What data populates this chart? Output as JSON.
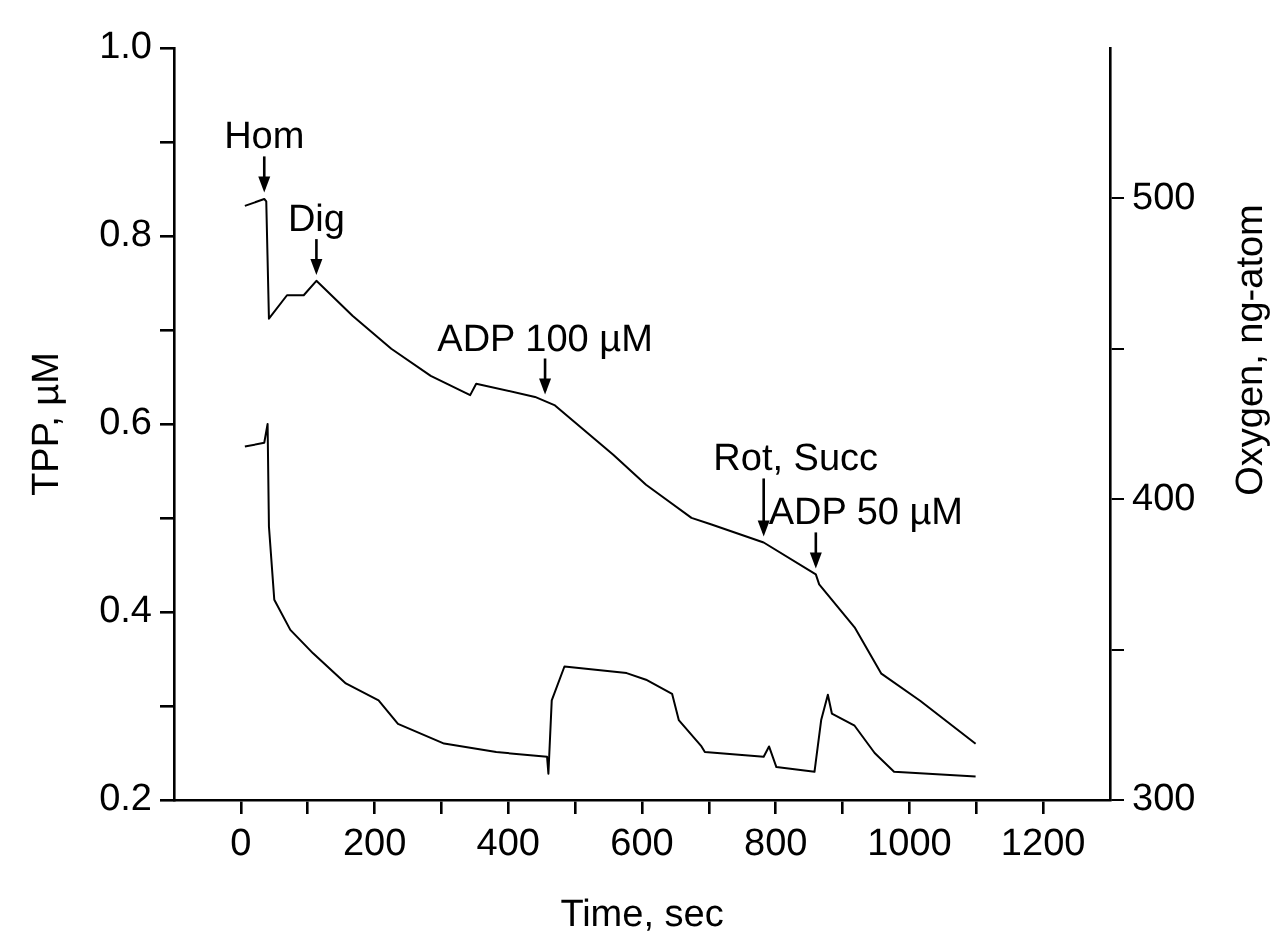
{
  "chart_data": {
    "type": "line",
    "xlabel": "Time, sec",
    "ylabel": "TPP, µM",
    "y2label": "Oxygen, ng-atom",
    "marker": "none",
    "xlim": [
      -100,
      1300
    ],
    "xticks": [
      0,
      {
        "value": 100,
        "label": null
      },
      200,
      {
        "value": 300,
        "label": null
      },
      400,
      {
        "value": 500,
        "label": null
      },
      600,
      {
        "value": 700,
        "label": null
      },
      800,
      {
        "value": 900,
        "label": null
      },
      1000,
      {
        "value": 1100,
        "label": null
      },
      1200
    ],
    "ylim": [
      0.2,
      1.0
    ],
    "yticks": [
      {
        "value": 0.2,
        "label": "0.2"
      },
      {
        "value": 0.3,
        "label": null
      },
      {
        "value": 0.4,
        "label": "0.4"
      },
      {
        "value": 0.5,
        "label": null
      },
      {
        "value": 0.6,
        "label": "0.6"
      },
      {
        "value": 0.7,
        "label": null
      },
      {
        "value": 0.8,
        "label": "0.8"
      },
      {
        "value": 0.9,
        "label": null
      },
      {
        "value": 1.0,
        "label": "1.0"
      }
    ],
    "y2lim": [
      300,
      550
    ],
    "y2ticks": [
      300,
      {
        "value": 350,
        "label": null
      },
      400,
      {
        "value": 450,
        "label": null
      },
      500
    ],
    "series": [
      {
        "color": "#000000",
        "axis": "y2",
        "x": [
          6,
          35,
          38,
          42,
          69,
          94,
          113,
          167,
          225,
          284,
          343,
          352,
          440,
          469,
          557,
          606,
          674,
          704,
          782,
          860,
          865,
          918,
          958,
          1016,
          1099
        ],
        "values": [
          497.5,
          499.8,
          499,
          460,
          467.8,
          467.8,
          472.6,
          461,
          450,
          441,
          434.6,
          438.4,
          434,
          431.3,
          414.8,
          404.8,
          393.8,
          391.6,
          385.6,
          375,
          371.7,
          357.4,
          342,
          333,
          318.7
        ]
      },
      {
        "color": "#000000",
        "axis": "y",
        "x": [
          6,
          35,
          40,
          42,
          50,
          74,
          108,
          157,
          206,
          235,
          304,
          382,
          458,
          460,
          465,
          484,
          577,
          606,
          645,
          655,
          689,
          694,
          782,
          790,
          801,
          858,
          868,
          878,
          884,
          918,
          948,
          977,
          1099
        ],
        "values": [
          0.576,
          0.58,
          0.6,
          0.491,
          0.413,
          0.381,
          0.356,
          0.324,
          0.306,
          0.281,
          0.26,
          0.251,
          0.246,
          0.228,
          0.306,
          0.342,
          0.335,
          0.328,
          0.313,
          0.285,
          0.257,
          0.251,
          0.246,
          0.257,
          0.235,
          0.23,
          0.285,
          0.312,
          0.292,
          0.279,
          0.25,
          0.23,
          0.225
        ]
      }
    ],
    "annotations": [
      {
        "text": "Hom",
        "x": 35,
        "y": 0.84
      },
      {
        "text": "Dig",
        "x": 113,
        "y": 0.752
      },
      {
        "text": "ADP 100 µM",
        "x": 455,
        "y": 0.625
      },
      {
        "text": "Rot, Succ",
        "x": 782,
        "y": 0.474
      },
      {
        "text": "ADP 50 µM",
        "x": 860,
        "y": 0.44
      }
    ]
  }
}
